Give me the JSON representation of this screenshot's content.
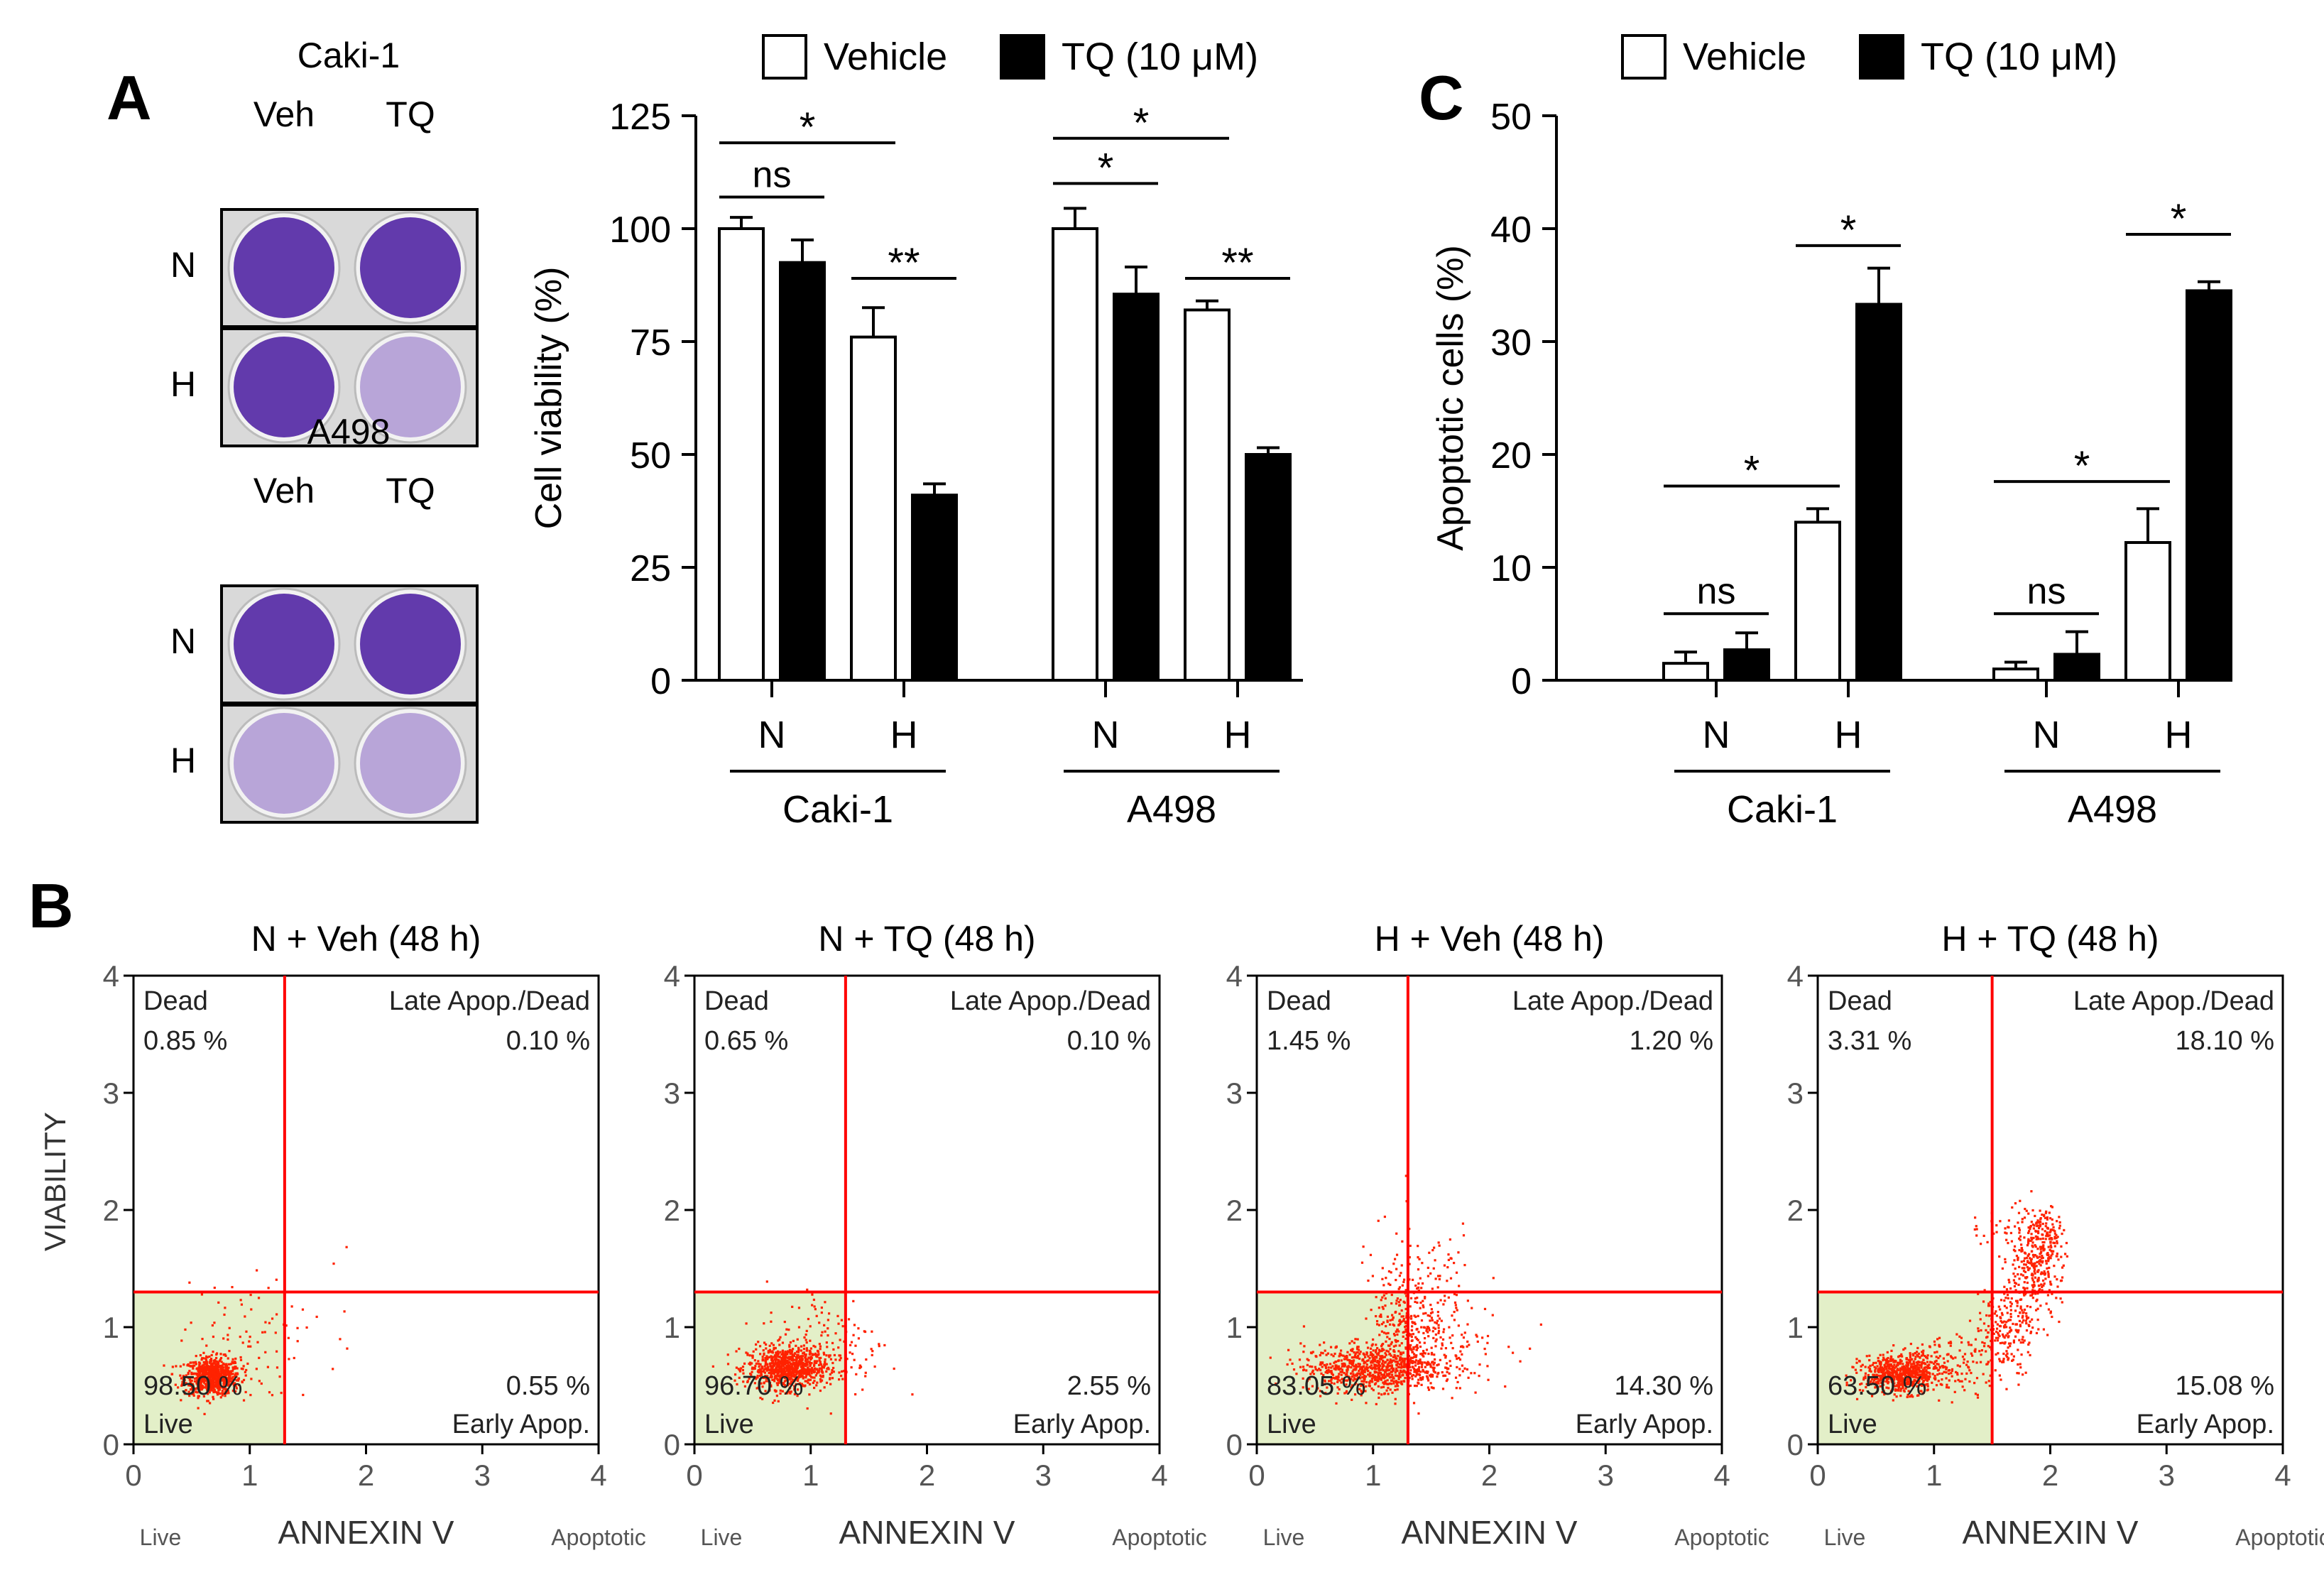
{
  "figure": {
    "panel_labels": {
      "a": "A",
      "b": "B",
      "c": "C"
    }
  },
  "legend": {
    "vehicle": "Vehicle",
    "tq": "TQ (10 μM)"
  },
  "colors": {
    "vehicle_fill": "#ffffff",
    "tq_fill": "#000000",
    "stroke": "#000000",
    "plate_bg": "#d9d9d9",
    "stain_dark": "#5a2fa8",
    "stain_light": "#b4a0d6",
    "quad_line": "#ff0000",
    "dot": "#ff2200",
    "live_bg": "#e3efc8",
    "flow_axis_text": "#555555"
  },
  "plates": {
    "groups": [
      {
        "title": "Caki-1",
        "col_labels": [
          "Veh",
          "TQ"
        ],
        "row_labels": [
          "N",
          "H"
        ],
        "wells": [
          [
            "dark",
            "dark"
          ],
          [
            "dark",
            "light"
          ]
        ]
      },
      {
        "title": "A498",
        "col_labels": [
          "Veh",
          "TQ"
        ],
        "row_labels": [
          "N",
          "H"
        ],
        "wells": [
          [
            "dark",
            "dark"
          ],
          [
            "light",
            "light"
          ]
        ]
      }
    ]
  },
  "chart_data": [
    {
      "type": "bar",
      "id": "viability",
      "ylabel": "Cell viability (%)",
      "ylim": [
        0,
        125
      ],
      "yticks": [
        0,
        25,
        50,
        75,
        100,
        125
      ],
      "groups": [
        {
          "cell_line": "Caki-1",
          "conditions": [
            "N",
            "H"
          ]
        },
        {
          "cell_line": "A498",
          "conditions": [
            "N",
            "H"
          ]
        }
      ],
      "series": [
        {
          "name": "Vehicle",
          "values": [
            100,
            76,
            100,
            82
          ],
          "errors": [
            2.5,
            6.5,
            4.5,
            2
          ]
        },
        {
          "name": "TQ (10 μM)",
          "values": [
            92.5,
            41,
            85.5,
            50
          ],
          "errors": [
            5,
            2.5,
            6,
            1.5
          ]
        }
      ],
      "significance": [
        {
          "label": "ns",
          "from_bar": 0,
          "to_bar": 1,
          "y": 107
        },
        {
          "label": "*",
          "from_bar": 0,
          "to_bar": 2,
          "y": 119
        },
        {
          "label": "**",
          "from_bar": 2,
          "to_bar": 3,
          "y": 89
        },
        {
          "label": "*",
          "from_bar": 4,
          "to_bar": 5,
          "y": 110
        },
        {
          "label": "*",
          "from_bar": 4,
          "to_bar": 6,
          "y": 120
        },
        {
          "label": "**",
          "from_bar": 6,
          "to_bar": 7,
          "y": 89
        }
      ]
    },
    {
      "type": "bar",
      "id": "apoptosis",
      "ylabel": "Apoptotic cells (%)",
      "ylim": [
        0,
        50
      ],
      "yticks": [
        0,
        10,
        20,
        30,
        40,
        50
      ],
      "groups": [
        {
          "cell_line": "Caki-1",
          "conditions": [
            "N",
            "H"
          ]
        },
        {
          "cell_line": "A498",
          "conditions": [
            "N",
            "H"
          ]
        }
      ],
      "series": [
        {
          "name": "Vehicle",
          "values": [
            1.5,
            14,
            1,
            12.2
          ],
          "errors": [
            1,
            1.2,
            0.6,
            3
          ]
        },
        {
          "name": "TQ (10 μM)",
          "values": [
            2.7,
            33.3,
            2.3,
            34.5
          ],
          "errors": [
            1.5,
            3.2,
            2,
            0.8
          ]
        }
      ],
      "significance": [
        {
          "label": "ns",
          "from_bar": 0,
          "to_bar": 1,
          "y": 5.9
        },
        {
          "label": "*",
          "from_bar": 0,
          "to_bar": 2,
          "y": 17.2
        },
        {
          "label": "*",
          "from_bar": 2,
          "to_bar": 3,
          "y": 38.5
        },
        {
          "label": "ns",
          "from_bar": 4,
          "to_bar": 5,
          "y": 5.9
        },
        {
          "label": "*",
          "from_bar": 4,
          "to_bar": 6,
          "y": 17.6
        },
        {
          "label": "*",
          "from_bar": 6,
          "to_bar": 7,
          "y": 39.5
        }
      ]
    },
    {
      "type": "scatter",
      "id": "flow",
      "xlabel": "ANNEXIN V",
      "ylabel": "VIABILITY",
      "xlim": [
        0,
        4
      ],
      "ylim": [
        0,
        4
      ],
      "ticks": [
        0,
        1,
        2,
        3,
        4
      ],
      "x_end_labels": [
        "Live",
        "Apoptotic"
      ],
      "quadrant_names": {
        "ul": "Dead",
        "ur": "Late Apop./Dead",
        "ll": "Live",
        "lr": "Early Apop."
      },
      "panels": [
        {
          "title": "N + Veh  (48 h)",
          "gate_x": 1.3,
          "gate_y": 1.3,
          "percent": {
            "dead": "0.85 %",
            "late": "0.10 %",
            "live": "98.50 %",
            "early": "0.55 %"
          },
          "clusters": [
            {
              "cx": 0.68,
              "cy": 0.58,
              "sx": 0.12,
              "sy": 0.08,
              "n": 750
            },
            {
              "cx": 0.9,
              "cy": 0.9,
              "sx": 0.25,
              "sy": 0.25,
              "n": 70
            },
            {
              "cx": 1.55,
              "cy": 1.2,
              "sx": 0.2,
              "sy": 0.35,
              "n": 12
            }
          ]
        },
        {
          "title": "N + TQ  (48 h)",
          "gate_x": 1.3,
          "gate_y": 1.3,
          "percent": {
            "dead": "0.65 %",
            "late": "0.10 %",
            "live": "96.70 %",
            "early": "2.55 %"
          },
          "clusters": [
            {
              "cx": 0.8,
              "cy": 0.65,
              "sx": 0.17,
              "sy": 0.09,
              "n": 850
            },
            {
              "cx": 1.1,
              "cy": 0.9,
              "sx": 0.25,
              "sy": 0.25,
              "n": 100
            },
            {
              "cx": 1.45,
              "cy": 0.75,
              "sx": 0.15,
              "sy": 0.15,
              "n": 22
            }
          ]
        },
        {
          "title": "H + Veh  (48 h)",
          "gate_x": 1.3,
          "gate_y": 1.3,
          "percent": {
            "dead": "1.45 %",
            "late": "1.20 %",
            "live": "83.05 %",
            "early": "14.30 %"
          },
          "clusters": [
            {
              "cx": 1.0,
              "cy": 0.65,
              "sx": 0.3,
              "sy": 0.1,
              "n": 800
            },
            {
              "cx": 1.3,
              "cy": 0.95,
              "sx": 0.15,
              "sy": 0.22,
              "n": 250
            },
            {
              "cx": 1.4,
              "cy": 1.3,
              "sx": 0.28,
              "sy": 0.3,
              "n": 120
            },
            {
              "cx": 1.7,
              "cy": 0.9,
              "sx": 0.25,
              "sy": 0.2,
              "n": 70
            }
          ]
        },
        {
          "title": "H + TQ  (48 h)",
          "gate_x": 1.5,
          "gate_y": 1.3,
          "percent": {
            "dead": "3.31 %",
            "late": "18.10 %",
            "live": "63.50 %",
            "early": "15.08 %"
          },
          "clusters": [
            {
              "cx": 0.72,
              "cy": 0.6,
              "sx": 0.17,
              "sy": 0.08,
              "n": 650
            },
            {
              "cx": 1.2,
              "cy": 0.7,
              "sx": 0.25,
              "sy": 0.12,
              "n": 140
            },
            {
              "cx": 1.6,
              "cy": 1.0,
              "sx": 0.12,
              "sy": 0.18,
              "n": 180
            },
            {
              "cx": 1.85,
              "cy": 1.45,
              "sx": 0.12,
              "sy": 0.2,
              "n": 280
            },
            {
              "cx": 1.95,
              "cy": 1.82,
              "sx": 0.1,
              "sy": 0.12,
              "n": 120
            },
            {
              "cx": 1.6,
              "cy": 1.85,
              "sx": 0.15,
              "sy": 0.08,
              "n": 30
            }
          ]
        }
      ]
    }
  ]
}
